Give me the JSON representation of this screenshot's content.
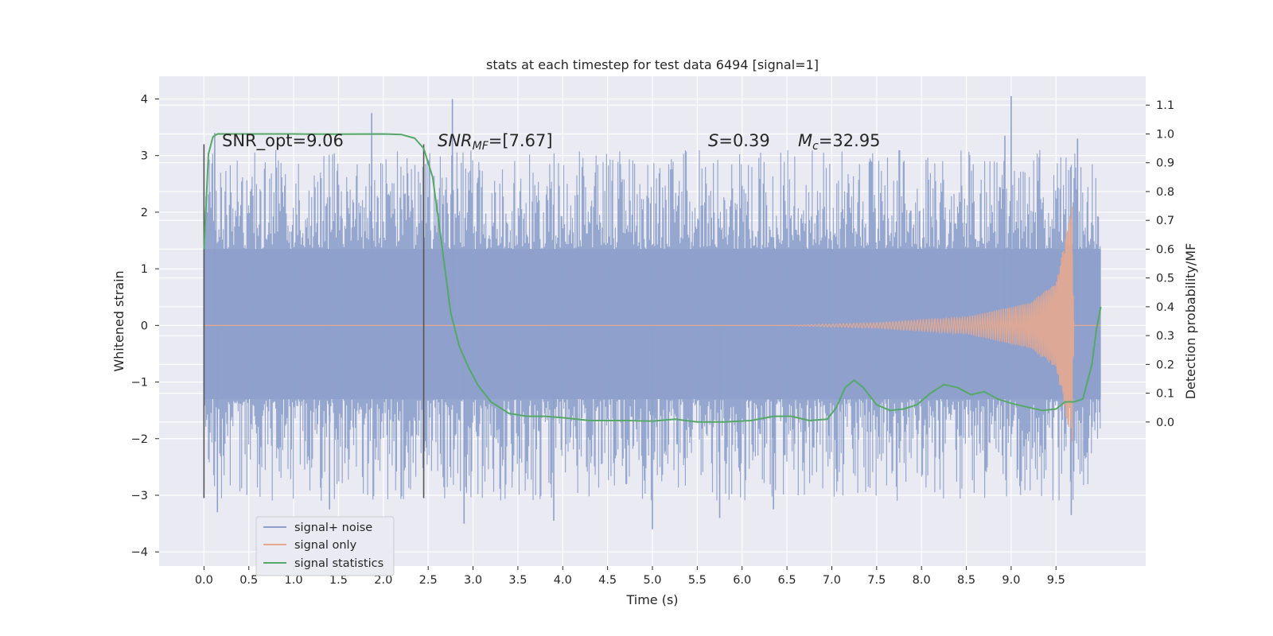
{
  "chart_data": {
    "type": "line",
    "title": "stats at each timestep for test data 6494 [signal=1]",
    "xlabel": "Time (s)",
    "ylabel": "Whitened strain",
    "ylabel_right": "Detection probability/MF",
    "xlim": [
      -0.5,
      10.5
    ],
    "ylim": [
      -4.25,
      4.4
    ],
    "ylim_right": [
      -0.5,
      1.2
    ],
    "x_ticks": [
      "0.0",
      "0.5",
      "1.0",
      "1.5",
      "2.0",
      "2.5",
      "3.0",
      "3.5",
      "4.0",
      "4.5",
      "5.0",
      "5.5",
      "6.0",
      "6.5",
      "7.0",
      "7.5",
      "8.0",
      "8.5",
      "9.0",
      "9.5"
    ],
    "y_ticks": [
      "4",
      "3",
      "2",
      "1",
      "0",
      "−1",
      "−2",
      "−3",
      "−4"
    ],
    "y_ticks_right": [
      "1.1",
      "1.0",
      "0.9",
      "0.8",
      "0.7",
      "0.6",
      "0.5",
      "0.4",
      "0.3",
      "0.2",
      "0.1",
      "0.0"
    ],
    "grid": true,
    "legend_position": "lower-left",
    "annotations": {
      "snr_opt": "SNR_opt=9.06",
      "snr_mf_label": "SNR",
      "snr_mf_sub": "MF",
      "snr_mf_value": "=[7.67]",
      "s_label": "S",
      "s_value": "=0.39",
      "mc_label": "M",
      "mc_sub": "c",
      "mc_value": "=32.95"
    },
    "vertical_lines_x": [
      0.0,
      2.45
    ],
    "series": [
      {
        "name": "signal+ noise",
        "color": "#8da0cb",
        "x_range": [
          0.0,
          10.0
        ],
        "dense_band": [
          -1.3,
          1.35
        ],
        "typical_extremes": [
          -2.6,
          2.6
        ],
        "spikes": [
          {
            "x": 0.12,
            "y": 3.4
          },
          {
            "x": 2.77,
            "y": 4.0
          },
          {
            "x": 1.87,
            "y": 3.75
          },
          {
            "x": 9.0,
            "y": 4.05
          },
          {
            "x": 8.93,
            "y": 3.35
          },
          {
            "x": 9.74,
            "y": 3.3
          },
          {
            "x": 0.15,
            "y": -3.3
          },
          {
            "x": 1.4,
            "y": -3.25
          },
          {
            "x": 2.9,
            "y": -3.5
          },
          {
            "x": 3.9,
            "y": -3.45
          },
          {
            "x": 5.0,
            "y": -3.6
          },
          {
            "x": 5.75,
            "y": -3.4
          },
          {
            "x": 6.35,
            "y": -3.25
          },
          {
            "x": 9.67,
            "y": -3.35
          }
        ]
      },
      {
        "name": "signal only",
        "color": "#e5a98f",
        "x_range": [
          0.0,
          10.0
        ],
        "description_points": [
          [
            6.5,
            0.0
          ],
          [
            7.5,
            0.05
          ],
          [
            8.5,
            0.15
          ],
          [
            9.2,
            0.4
          ],
          [
            9.5,
            0.75
          ],
          [
            9.65,
            1.9
          ],
          [
            9.68,
            2.2
          ],
          [
            9.7,
            0.0
          ]
        ]
      },
      {
        "name": "signal statistics",
        "color": "#55a868",
        "axis": "right",
        "x": [
          0.0,
          0.05,
          0.1,
          0.15,
          0.25,
          0.5,
          1.0,
          1.5,
          2.0,
          2.2,
          2.35,
          2.45,
          2.55,
          2.65,
          2.75,
          2.85,
          2.95,
          3.05,
          3.2,
          3.4,
          3.6,
          3.8,
          4.0,
          4.3,
          4.7,
          5.0,
          5.25,
          5.5,
          5.8,
          6.1,
          6.35,
          6.55,
          6.75,
          6.95,
          7.05,
          7.15,
          7.25,
          7.35,
          7.5,
          7.65,
          7.8,
          7.95,
          8.1,
          8.25,
          8.4,
          8.55,
          8.7,
          8.85,
          9.0,
          9.2,
          9.35,
          9.5,
          9.6,
          9.7,
          9.8,
          9.9,
          9.95,
          10.0
        ],
        "values": [
          0.6,
          0.93,
          0.99,
          1.0,
          1.0,
          1.0,
          1.0,
          0.999,
          1.0,
          0.998,
          0.985,
          0.95,
          0.85,
          0.62,
          0.38,
          0.26,
          0.19,
          0.13,
          0.07,
          0.03,
          0.02,
          0.02,
          0.015,
          0.005,
          0.005,
          0.003,
          0.01,
          0.0,
          0.0,
          0.005,
          0.02,
          0.02,
          0.005,
          0.01,
          0.05,
          0.12,
          0.145,
          0.12,
          0.06,
          0.04,
          0.045,
          0.06,
          0.1,
          0.13,
          0.12,
          0.095,
          0.105,
          0.08,
          0.065,
          0.05,
          0.04,
          0.045,
          0.07,
          0.07,
          0.08,
          0.2,
          0.32,
          0.4
        ]
      }
    ]
  }
}
